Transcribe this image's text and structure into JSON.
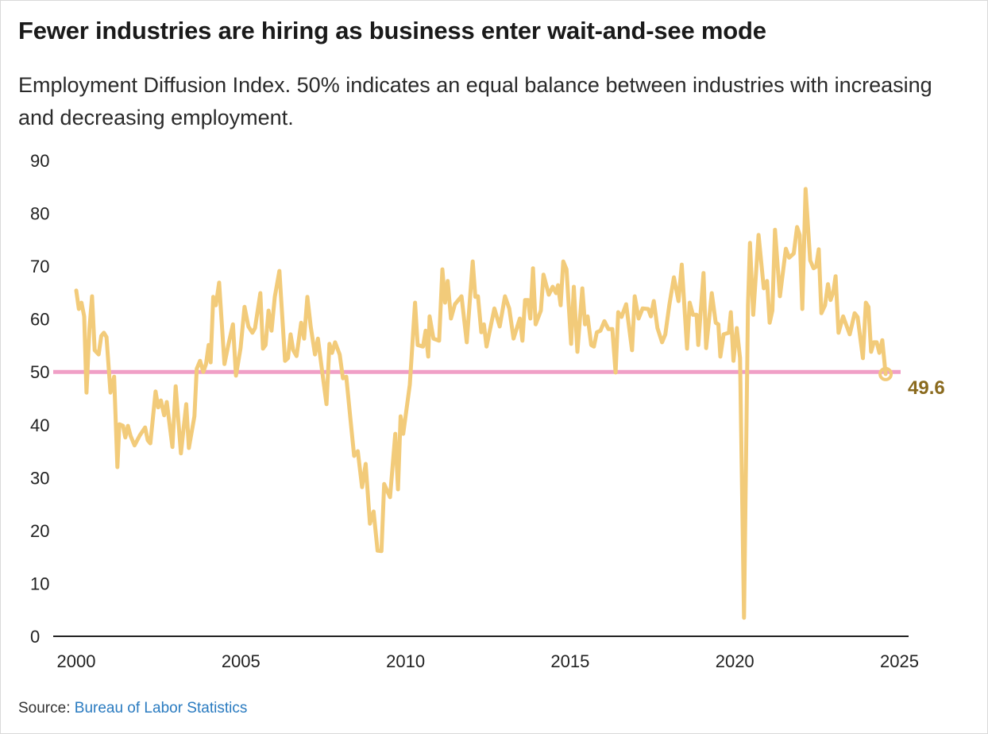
{
  "header": {
    "title": "Fewer industries are hiring as business enter wait-and-see mode",
    "subtitle": "Employment Diffusion Index. 50% indicates an equal balance between industries with increasing and decreasing employment."
  },
  "source": {
    "label": "Source:",
    "link_text": "Bureau of Labor Statistics"
  },
  "colors": {
    "line": "#f2cb7a",
    "reference": "#f09fc6",
    "end_label": "#8a6a1e",
    "axis": "#222222",
    "link": "#2a7bc0"
  },
  "chart_data": {
    "type": "line",
    "title": "Fewer industries are hiring as business enter wait-and-see mode",
    "xlabel": "",
    "ylabel": "",
    "xlim": [
      2000,
      2025
    ],
    "ylim": [
      0,
      90
    ],
    "grid": false,
    "x_ticks": [
      "2000",
      "2005",
      "2010",
      "2015",
      "2020",
      "2025"
    ],
    "y_ticks": [
      "0",
      "10",
      "20",
      "30",
      "40",
      "50",
      "60",
      "70",
      "80",
      "90"
    ],
    "reference_line": {
      "value": 50
    },
    "end_annotation": {
      "label": "49.6",
      "value": 49.6
    },
    "series": [
      {
        "name": "Employment Diffusion Index",
        "points": [
          [
            2000.0,
            65.4
          ],
          [
            2000.08,
            61.9
          ],
          [
            2000.16,
            63.1
          ],
          [
            2000.24,
            60.5
          ],
          [
            2000.31,
            46.1
          ],
          [
            2000.4,
            58.1
          ],
          [
            2000.48,
            64.3
          ],
          [
            2000.56,
            54.1
          ],
          [
            2000.68,
            53.3
          ],
          [
            2000.76,
            56.8
          ],
          [
            2000.84,
            57.4
          ],
          [
            2000.92,
            56.6
          ],
          [
            2001.04,
            46.1
          ],
          [
            2001.15,
            49.1
          ],
          [
            2001.25,
            32.0
          ],
          [
            2001.31,
            40.1
          ],
          [
            2001.42,
            39.8
          ],
          [
            2001.49,
            37.6
          ],
          [
            2001.57,
            39.8
          ],
          [
            2001.65,
            37.9
          ],
          [
            2001.77,
            36.1
          ],
          [
            2001.93,
            38.0
          ],
          [
            2002.09,
            39.5
          ],
          [
            2002.17,
            37.1
          ],
          [
            2002.25,
            36.5
          ],
          [
            2002.41,
            46.3
          ],
          [
            2002.49,
            43.3
          ],
          [
            2002.57,
            44.6
          ],
          [
            2002.67,
            41.8
          ],
          [
            2002.75,
            44.3
          ],
          [
            2002.92,
            35.8
          ],
          [
            2003.02,
            47.3
          ],
          [
            2003.18,
            34.6
          ],
          [
            2003.34,
            43.9
          ],
          [
            2003.42,
            35.6
          ],
          [
            2003.59,
            41.6
          ],
          [
            2003.66,
            50.6
          ],
          [
            2003.76,
            52.1
          ],
          [
            2003.86,
            50.0
          ],
          [
            2003.94,
            51.5
          ],
          [
            2004.02,
            55.1
          ],
          [
            2004.08,
            51.8
          ],
          [
            2004.16,
            64.2
          ],
          [
            2004.24,
            62.6
          ],
          [
            2004.34,
            66.9
          ],
          [
            2004.5,
            51.5
          ],
          [
            2004.62,
            55.1
          ],
          [
            2004.76,
            59.0
          ],
          [
            2004.85,
            49.3
          ],
          [
            2004.99,
            54.5
          ],
          [
            2005.11,
            62.3
          ],
          [
            2005.23,
            58.6
          ],
          [
            2005.35,
            57.4
          ],
          [
            2005.43,
            58.3
          ],
          [
            2005.59,
            64.9
          ],
          [
            2005.67,
            54.4
          ],
          [
            2005.75,
            55.1
          ],
          [
            2005.84,
            61.6
          ],
          [
            2005.93,
            57.8
          ],
          [
            2006.03,
            64.2
          ],
          [
            2006.17,
            69.1
          ],
          [
            2006.34,
            52.1
          ],
          [
            2006.43,
            52.6
          ],
          [
            2006.51,
            57.1
          ],
          [
            2006.59,
            54.1
          ],
          [
            2006.69,
            53.0
          ],
          [
            2006.83,
            59.3
          ],
          [
            2006.92,
            56.3
          ],
          [
            2007.02,
            64.2
          ],
          [
            2007.12,
            58.6
          ],
          [
            2007.25,
            53.3
          ],
          [
            2007.34,
            56.3
          ],
          [
            2007.48,
            49.6
          ],
          [
            2007.6,
            43.9
          ],
          [
            2007.69,
            55.3
          ],
          [
            2007.77,
            53.6
          ],
          [
            2007.86,
            55.6
          ],
          [
            2008.0,
            53.3
          ],
          [
            2008.1,
            48.8
          ],
          [
            2008.2,
            49.1
          ],
          [
            2008.32,
            41.6
          ],
          [
            2008.44,
            34.1
          ],
          [
            2008.55,
            35.0
          ],
          [
            2008.68,
            28.2
          ],
          [
            2008.79,
            32.6
          ],
          [
            2008.92,
            21.3
          ],
          [
            2009.03,
            23.6
          ],
          [
            2009.15,
            16.2
          ],
          [
            2009.27,
            16.1
          ],
          [
            2009.35,
            28.8
          ],
          [
            2009.53,
            26.3
          ],
          [
            2009.69,
            38.3
          ],
          [
            2009.77,
            27.8
          ],
          [
            2009.85,
            41.6
          ],
          [
            2009.93,
            38.3
          ],
          [
            2010.13,
            47.6
          ],
          [
            2010.29,
            63.1
          ],
          [
            2010.37,
            55.1
          ],
          [
            2010.53,
            54.8
          ],
          [
            2010.61,
            57.8
          ],
          [
            2010.69,
            52.9
          ],
          [
            2010.73,
            60.5
          ],
          [
            2010.85,
            56.3
          ],
          [
            2011.02,
            55.9
          ],
          [
            2011.12,
            69.4
          ],
          [
            2011.2,
            63.1
          ],
          [
            2011.28,
            67.2
          ],
          [
            2011.38,
            60.1
          ],
          [
            2011.5,
            62.8
          ],
          [
            2011.7,
            64.3
          ],
          [
            2011.86,
            55.6
          ],
          [
            2012.04,
            70.9
          ],
          [
            2012.12,
            64.2
          ],
          [
            2012.2,
            64.3
          ],
          [
            2012.3,
            57.5
          ],
          [
            2012.38,
            59.0
          ],
          [
            2012.46,
            54.8
          ],
          [
            2012.7,
            62.0
          ],
          [
            2012.86,
            58.6
          ],
          [
            2013.02,
            64.3
          ],
          [
            2013.15,
            62.0
          ],
          [
            2013.28,
            56.3
          ],
          [
            2013.47,
            60.1
          ],
          [
            2013.55,
            55.9
          ],
          [
            2013.63,
            63.6
          ],
          [
            2013.72,
            63.6
          ],
          [
            2013.79,
            60.1
          ],
          [
            2013.87,
            69.6
          ],
          [
            2013.95,
            59.0
          ],
          [
            2014.11,
            61.6
          ],
          [
            2014.19,
            68.4
          ],
          [
            2014.35,
            64.6
          ],
          [
            2014.47,
            66.1
          ],
          [
            2014.57,
            64.9
          ],
          [
            2014.63,
            66.4
          ],
          [
            2014.71,
            62.6
          ],
          [
            2014.79,
            70.9
          ],
          [
            2014.89,
            69.4
          ],
          [
            2015.03,
            55.3
          ],
          [
            2015.11,
            66.1
          ],
          [
            2015.22,
            53.8
          ],
          [
            2015.37,
            65.8
          ],
          [
            2015.45,
            59.0
          ],
          [
            2015.53,
            60.5
          ],
          [
            2015.64,
            55.1
          ],
          [
            2015.72,
            54.8
          ],
          [
            2015.81,
            57.5
          ],
          [
            2015.92,
            57.8
          ],
          [
            2016.04,
            59.6
          ],
          [
            2016.16,
            58.1
          ],
          [
            2016.28,
            58.1
          ],
          [
            2016.38,
            49.9
          ],
          [
            2016.46,
            61.3
          ],
          [
            2016.56,
            60.4
          ],
          [
            2016.7,
            62.8
          ],
          [
            2016.88,
            54.1
          ],
          [
            2016.96,
            64.3
          ],
          [
            2017.08,
            60.1
          ],
          [
            2017.2,
            62.0
          ],
          [
            2017.37,
            61.9
          ],
          [
            2017.45,
            60.5
          ],
          [
            2017.54,
            63.4
          ],
          [
            2017.65,
            58.3
          ],
          [
            2017.79,
            55.6
          ],
          [
            2017.89,
            57.1
          ],
          [
            2018.01,
            62.6
          ],
          [
            2018.15,
            67.9
          ],
          [
            2018.29,
            63.4
          ],
          [
            2018.39,
            70.3
          ],
          [
            2018.55,
            54.4
          ],
          [
            2018.63,
            63.1
          ],
          [
            2018.73,
            60.8
          ],
          [
            2018.84,
            60.8
          ],
          [
            2018.89,
            55.1
          ],
          [
            2019.05,
            68.7
          ],
          [
            2019.13,
            54.5
          ],
          [
            2019.3,
            64.9
          ],
          [
            2019.42,
            59.3
          ],
          [
            2019.5,
            59.0
          ],
          [
            2019.56,
            52.9
          ],
          [
            2019.66,
            57.1
          ],
          [
            2019.82,
            57.4
          ],
          [
            2019.88,
            61.3
          ],
          [
            2019.96,
            52.1
          ],
          [
            2020.06,
            58.3
          ],
          [
            2020.16,
            52.6
          ],
          [
            2020.28,
            3.5
          ],
          [
            2020.4,
            62.6
          ],
          [
            2020.46,
            74.4
          ],
          [
            2020.56,
            60.8
          ],
          [
            2020.72,
            75.9
          ],
          [
            2020.88,
            65.8
          ],
          [
            2020.98,
            67.2
          ],
          [
            2021.06,
            59.3
          ],
          [
            2021.14,
            61.6
          ],
          [
            2021.22,
            76.9
          ],
          [
            2021.37,
            64.3
          ],
          [
            2021.55,
            73.3
          ],
          [
            2021.65,
            71.6
          ],
          [
            2021.79,
            72.4
          ],
          [
            2021.89,
            77.4
          ],
          [
            2021.97,
            75.9
          ],
          [
            2022.05,
            61.9
          ],
          [
            2022.15,
            84.6
          ],
          [
            2022.29,
            71.1
          ],
          [
            2022.39,
            69.6
          ],
          [
            2022.47,
            69.9
          ],
          [
            2022.55,
            73.2
          ],
          [
            2022.63,
            61.1
          ],
          [
            2022.74,
            62.6
          ],
          [
            2022.83,
            66.6
          ],
          [
            2022.91,
            63.6
          ],
          [
            2022.99,
            65.1
          ],
          [
            2023.06,
            68.1
          ],
          [
            2023.15,
            57.4
          ],
          [
            2023.29,
            60.5
          ],
          [
            2023.49,
            57.1
          ],
          [
            2023.64,
            61.1
          ],
          [
            2023.73,
            60.4
          ],
          [
            2023.89,
            52.6
          ],
          [
            2023.98,
            63.1
          ],
          [
            2024.06,
            62.3
          ],
          [
            2024.14,
            53.8
          ],
          [
            2024.22,
            55.6
          ],
          [
            2024.31,
            55.6
          ],
          [
            2024.39,
            53.6
          ],
          [
            2024.48,
            56.0
          ],
          [
            2024.58,
            49.6
          ]
        ]
      }
    ]
  }
}
